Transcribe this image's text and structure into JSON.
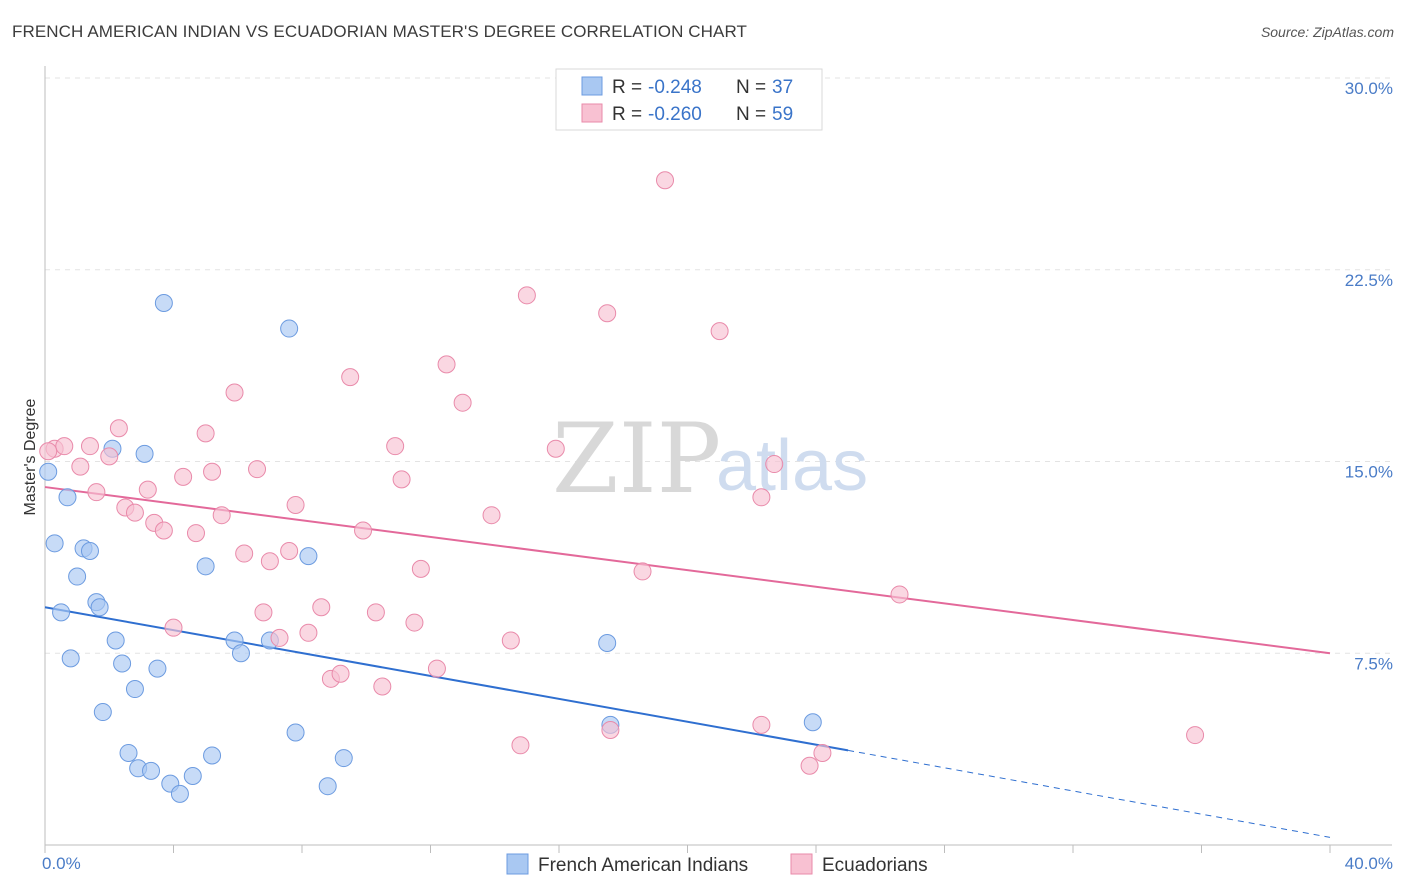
{
  "title": "FRENCH AMERICAN INDIAN VS ECUADORIAN MASTER'S DEGREE CORRELATION CHART",
  "source": "Source: ZipAtlas.com",
  "watermark": {
    "zip": "ZIP",
    "atlas": "atlas"
  },
  "legend_top": [
    {
      "r_label": "R = ",
      "r_value": "-0.248",
      "n_label": "N = ",
      "n_value": "37",
      "color": "#a9c8f2",
      "stroke": "#6c9be0"
    },
    {
      "r_label": "R = ",
      "r_value": "-0.260",
      "n_label": "N = ",
      "n_value": "59",
      "color": "#f8c1d2",
      "stroke": "#e98aaa"
    }
  ],
  "legend_bottom": [
    {
      "name": "French American Indians",
      "color": "#a9c8f2",
      "stroke": "#6c9be0"
    },
    {
      "name": "Ecuadorians",
      "color": "#f8c1d2",
      "stroke": "#e98aaa"
    }
  ],
  "chart_data": {
    "type": "scatter",
    "xlabel": "",
    "ylabel": "Master's Degree",
    "xlim": [
      0,
      40
    ],
    "ylim": [
      0,
      30
    ],
    "x_tick_labels": [
      "0.0%",
      "40.0%"
    ],
    "y_ticks": [
      7.5,
      15.0,
      22.5,
      30.0
    ],
    "y_tick_labels": [
      "7.5%",
      "15.0%",
      "22.5%",
      "30.0%"
    ],
    "grid": true,
    "series": [
      {
        "name": "French American Indians",
        "color": "#a9c8f2",
        "stroke": "#6c9be0",
        "trend_color": "#2f6fd0",
        "trend": {
          "x0": 0,
          "y0": 9.3,
          "x1": 25,
          "y1": 3.7,
          "dashed_to_x": 40,
          "dashed_to_y": 0.3
        },
        "points": [
          [
            0.1,
            14.6
          ],
          [
            0.7,
            13.6
          ],
          [
            0.3,
            11.8
          ],
          [
            1.2,
            11.6
          ],
          [
            1.4,
            11.5
          ],
          [
            1.0,
            10.5
          ],
          [
            1.6,
            9.5
          ],
          [
            0.5,
            9.1
          ],
          [
            1.7,
            9.3
          ],
          [
            0.8,
            7.3
          ],
          [
            2.2,
            8.0
          ],
          [
            2.4,
            7.1
          ],
          [
            2.8,
            6.1
          ],
          [
            3.5,
            6.9
          ],
          [
            1.8,
            5.2
          ],
          [
            2.6,
            3.6
          ],
          [
            2.9,
            3.0
          ],
          [
            3.3,
            2.9
          ],
          [
            3.9,
            2.4
          ],
          [
            4.2,
            2.0
          ],
          [
            4.6,
            2.7
          ],
          [
            5.2,
            3.5
          ],
          [
            5.9,
            8.0
          ],
          [
            6.1,
            7.5
          ],
          [
            7.0,
            8.0
          ],
          [
            7.8,
            4.4
          ],
          [
            8.8,
            2.3
          ],
          [
            9.3,
            3.4
          ],
          [
            8.2,
            11.3
          ],
          [
            5.0,
            10.9
          ],
          [
            3.1,
            15.3
          ],
          [
            2.1,
            15.5
          ],
          [
            3.7,
            21.2
          ],
          [
            7.6,
            20.2
          ],
          [
            17.5,
            7.9
          ],
          [
            17.6,
            4.7
          ],
          [
            23.9,
            4.8
          ]
        ]
      },
      {
        "name": "Ecuadorians",
        "color": "#f8c1d2",
        "stroke": "#e98aaa",
        "trend_color": "#e3699a",
        "trend": {
          "x0": 0,
          "y0": 14.0,
          "x1": 40,
          "y1": 7.5
        },
        "points": [
          [
            0.3,
            15.5
          ],
          [
            0.6,
            15.6
          ],
          [
            1.1,
            14.8
          ],
          [
            1.4,
            15.6
          ],
          [
            1.6,
            13.8
          ],
          [
            2.0,
            15.2
          ],
          [
            2.3,
            16.3
          ],
          [
            2.5,
            13.2
          ],
          [
            2.8,
            13.0
          ],
          [
            3.2,
            13.9
          ],
          [
            3.4,
            12.6
          ],
          [
            3.7,
            12.3
          ],
          [
            4.0,
            8.5
          ],
          [
            4.3,
            14.4
          ],
          [
            4.7,
            12.2
          ],
          [
            5.0,
            16.1
          ],
          [
            5.2,
            14.6
          ],
          [
            5.5,
            12.9
          ],
          [
            5.9,
            17.7
          ],
          [
            6.2,
            11.4
          ],
          [
            6.6,
            14.7
          ],
          [
            6.8,
            9.1
          ],
          [
            7.0,
            11.1
          ],
          [
            7.3,
            8.1
          ],
          [
            7.6,
            11.5
          ],
          [
            7.8,
            13.3
          ],
          [
            8.2,
            8.3
          ],
          [
            8.6,
            9.3
          ],
          [
            8.9,
            6.5
          ],
          [
            9.2,
            6.7
          ],
          [
            9.5,
            18.3
          ],
          [
            9.9,
            12.3
          ],
          [
            10.3,
            9.1
          ],
          [
            10.5,
            6.2
          ],
          [
            10.9,
            15.6
          ],
          [
            11.1,
            14.3
          ],
          [
            11.5,
            8.7
          ],
          [
            11.7,
            10.8
          ],
          [
            12.2,
            6.9
          ],
          [
            12.5,
            18.8
          ],
          [
            13.0,
            17.3
          ],
          [
            13.9,
            12.9
          ],
          [
            14.5,
            8.0
          ],
          [
            14.8,
            3.9
          ],
          [
            15.0,
            21.5
          ],
          [
            15.9,
            15.5
          ],
          [
            17.5,
            20.8
          ],
          [
            17.6,
            4.5
          ],
          [
            18.6,
            10.7
          ],
          [
            19.3,
            26.0
          ],
          [
            21.0,
            20.1
          ],
          [
            22.3,
            4.7
          ],
          [
            22.3,
            13.6
          ],
          [
            22.7,
            14.9
          ],
          [
            23.8,
            3.1
          ],
          [
            24.2,
            3.6
          ],
          [
            26.6,
            9.8
          ],
          [
            35.8,
            4.3
          ],
          [
            0.1,
            15.4
          ]
        ]
      }
    ]
  }
}
